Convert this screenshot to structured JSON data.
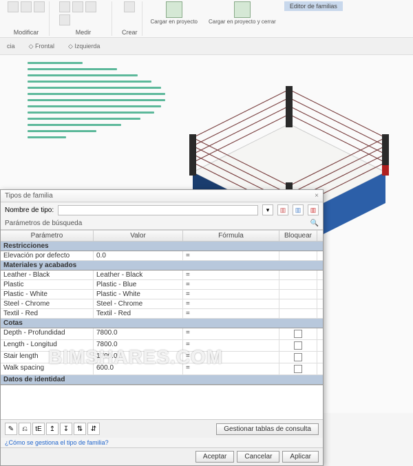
{
  "ribbon": {
    "modify": "Modificar",
    "measure": "Medir",
    "create": "Crear",
    "loadProject": "Cargar en\nproyecto",
    "loadClose": "Cargar en\nproyecto y cerrar",
    "familyEditor": "Editor de familias"
  },
  "viewbar": {
    "item1": "cia",
    "item2": "Frontal",
    "item3": "Izquierda"
  },
  "dialog": {
    "title": "Tipos de familia",
    "typeNameLabel": "Nombre de tipo:",
    "typeNameValue": "",
    "searchLabel": "Parámetros de búsqueda",
    "columns": {
      "param": "Parámetro",
      "value": "Valor",
      "formula": "Fórmula",
      "lock": "Bloquear"
    },
    "sections": {
      "restrictions": {
        "title": "Restricciones",
        "rows": [
          {
            "p": "Elevación por defecto",
            "v": "0.0",
            "f": "="
          }
        ]
      },
      "materials": {
        "title": "Materiales y acabados",
        "rows": [
          {
            "p": "Leather - Black",
            "v": "Leather - Black",
            "f": "="
          },
          {
            "p": "Plastic",
            "v": "Plastic - Blue",
            "f": "="
          },
          {
            "p": "Plastic - White",
            "v": "Plastic - White",
            "f": "="
          },
          {
            "p": "Steel - Chrome",
            "v": "Steel - Chrome",
            "f": "="
          },
          {
            "p": "Textil - Red",
            "v": "Textil - Red",
            "f": "="
          }
        ]
      },
      "cotas": {
        "title": "Cotas",
        "rows": [
          {
            "p": "Depth - Profundidad",
            "v": "7800.0",
            "f": "=",
            "chk": true
          },
          {
            "p": "Length - Longitud",
            "v": "7800.0",
            "f": "=",
            "chk": true
          },
          {
            "p": "Stair length",
            "v": "1700.0",
            "f": "=",
            "chk": true
          },
          {
            "p": "Walk spacing",
            "v": "600.0",
            "f": "=",
            "chk": true
          }
        ]
      },
      "identity": {
        "title": "Datos de identidad"
      }
    },
    "manageTables": "Gestionar tablas de consulta",
    "helpLink": "¿Cómo se gestiona el tipo de familia?",
    "ok": "Aceptar",
    "cancel": "Cancelar",
    "apply": "Aplicar"
  },
  "watermark": "BIMSHARES.COM",
  "hatch": {
    "color": "#5cb89a",
    "lines": 13
  },
  "ring": {
    "platformTop": "#f5f5f3",
    "platformSide": "#2c5fa8",
    "platformShadow": "#1a3d6e",
    "post": "#2a2a2a",
    "postAccent": "#b02020",
    "rope": "#7a4040"
  }
}
